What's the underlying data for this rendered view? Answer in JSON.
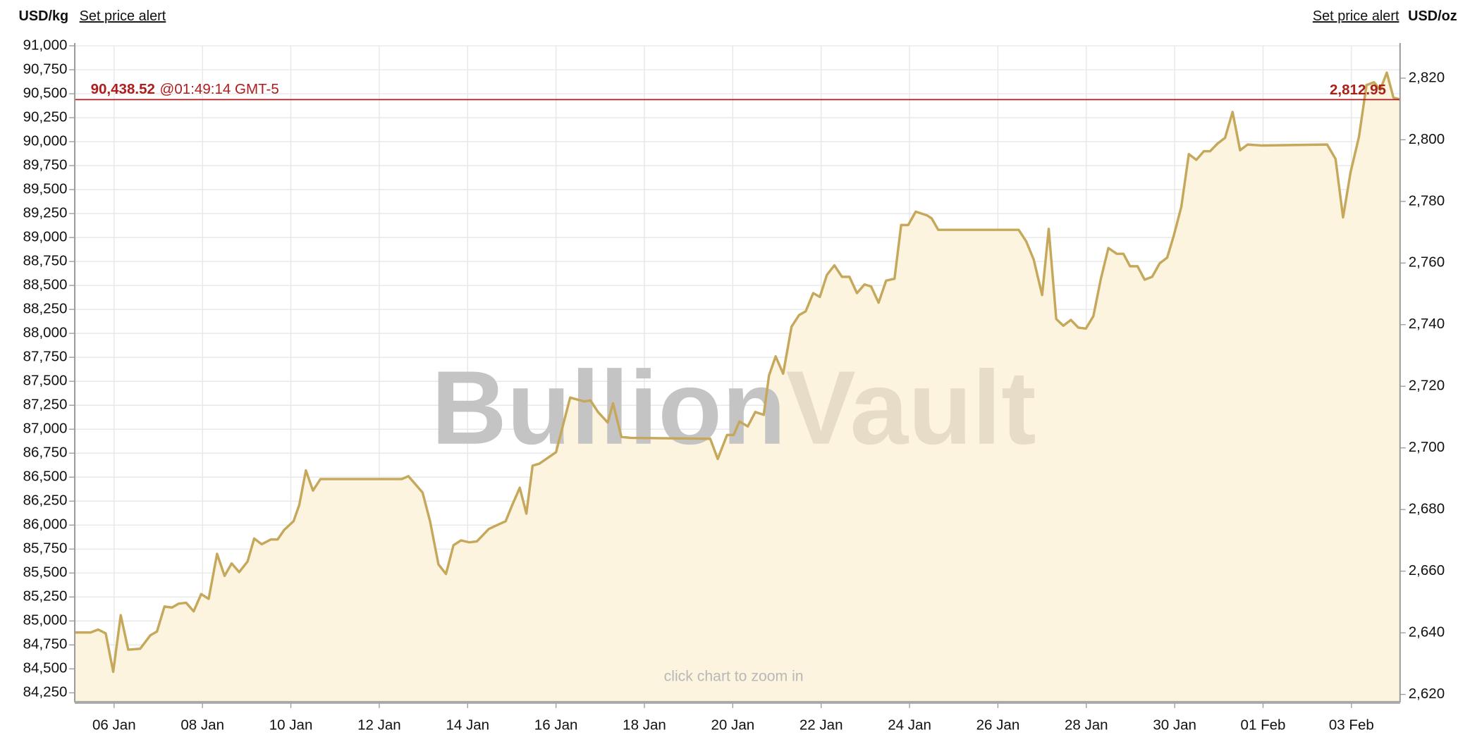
{
  "header": {
    "left_unit": "USD/kg",
    "left_alert": "Set price alert",
    "right_alert": "Set price alert",
    "right_unit": "USD/oz"
  },
  "chart_data": {
    "type": "area",
    "watermark": {
      "first": "Bullion",
      "second": "Vault"
    },
    "hint": "click chart to zoom in",
    "grid": true,
    "xlim": [
      5.11,
      35.1
    ],
    "xticks": [
      {
        "value": 6,
        "label": "06 Jan"
      },
      {
        "value": 8,
        "label": "08 Jan"
      },
      {
        "value": 10,
        "label": "10 Jan"
      },
      {
        "value": 12,
        "label": "12 Jan"
      },
      {
        "value": 14,
        "label": "14 Jan"
      },
      {
        "value": 16,
        "label": "16 Jan"
      },
      {
        "value": 18,
        "label": "18 Jan"
      },
      {
        "value": 20,
        "label": "20 Jan"
      },
      {
        "value": 22,
        "label": "22 Jan"
      },
      {
        "value": 24,
        "label": "24 Jan"
      },
      {
        "value": 26,
        "label": "26 Jan"
      },
      {
        "value": 28,
        "label": "28 Jan"
      },
      {
        "value": 30,
        "label": "30 Jan"
      },
      {
        "value": 32,
        "label": "01 Feb"
      },
      {
        "value": 34,
        "label": "03 Feb"
      }
    ],
    "ylim": [
      84150,
      91000
    ],
    "yticks": [
      {
        "value": 84250,
        "label": "84,250"
      },
      {
        "value": 84500,
        "label": "84,500"
      },
      {
        "value": 84750,
        "label": "84,750"
      },
      {
        "value": 85000,
        "label": "85,000"
      },
      {
        "value": 85250,
        "label": "85,250"
      },
      {
        "value": 85500,
        "label": "85,500"
      },
      {
        "value": 85750,
        "label": "85,750"
      },
      {
        "value": 86000,
        "label": "86,000"
      },
      {
        "value": 86250,
        "label": "86,250"
      },
      {
        "value": 86500,
        "label": "86,500"
      },
      {
        "value": 86750,
        "label": "86,750"
      },
      {
        "value": 87000,
        "label": "87,000"
      },
      {
        "value": 87250,
        "label": "87,250"
      },
      {
        "value": 87500,
        "label": "87,500"
      },
      {
        "value": 87750,
        "label": "87,750"
      },
      {
        "value": 88000,
        "label": "88,000"
      },
      {
        "value": 88250,
        "label": "88,250"
      },
      {
        "value": 88500,
        "label": "88,500"
      },
      {
        "value": 88750,
        "label": "88,750"
      },
      {
        "value": 89000,
        "label": "89,000"
      },
      {
        "value": 89250,
        "label": "89,250"
      },
      {
        "value": 89500,
        "label": "89,500"
      },
      {
        "value": 89750,
        "label": "89,750"
      },
      {
        "value": 90000,
        "label": "90,000"
      },
      {
        "value": 90250,
        "label": "90,250"
      },
      {
        "value": 90500,
        "label": "90,500"
      },
      {
        "value": 90750,
        "label": "90,750"
      },
      {
        "value": 91000,
        "label": "91,000"
      }
    ],
    "y2lim": [
      2617.4,
      2830.5
    ],
    "y2ticks": [
      {
        "value": 2620,
        "label": "2,620"
      },
      {
        "value": 2640,
        "label": "2,640"
      },
      {
        "value": 2660,
        "label": "2,660"
      },
      {
        "value": 2680,
        "label": "2,680"
      },
      {
        "value": 2700,
        "label": "2,700"
      },
      {
        "value": 2720,
        "label": "2,720"
      },
      {
        "value": 2740,
        "label": "2,740"
      },
      {
        "value": 2760,
        "label": "2,760"
      },
      {
        "value": 2780,
        "label": "2,780"
      },
      {
        "value": 2800,
        "label": "2,800"
      },
      {
        "value": 2820,
        "label": "2,820"
      }
    ],
    "price_line": {
      "value": 90438.52,
      "label": "90,438.52",
      "time": "@01:49:14 GMT-5",
      "y2_value": 2812.95,
      "y2_label": "2,812.95",
      "color": "#b01c1c"
    },
    "series": [
      {
        "color": "#c6a85c",
        "fill": "#fcf4df",
        "x": [
          5.11,
          5.47,
          5.64,
          5.81,
          5.98,
          6.15,
          6.32,
          6.59,
          6.82,
          6.97,
          7.14,
          7.31,
          7.46,
          7.63,
          7.8,
          7.97,
          8.14,
          8.33,
          8.5,
          8.66,
          8.83,
          9.02,
          9.17,
          9.34,
          9.55,
          9.7,
          9.85,
          10.06,
          10.19,
          10.34,
          10.5,
          10.67,
          12.51,
          12.66,
          12.98,
          13.15,
          13.34,
          13.51,
          13.68,
          13.85,
          14.04,
          14.21,
          14.48,
          14.67,
          14.86,
          15.01,
          15.18,
          15.33,
          15.47,
          15.62,
          16.0,
          16.32,
          16.64,
          16.78,
          16.95,
          17.17,
          17.29,
          17.48,
          17.69,
          19.49,
          19.66,
          19.87,
          20.02,
          20.15,
          20.34,
          20.51,
          20.7,
          20.82,
          20.97,
          21.14,
          21.33,
          21.5,
          21.65,
          21.82,
          21.97,
          22.13,
          22.3,
          22.47,
          22.64,
          22.81,
          22.98,
          23.13,
          23.3,
          23.47,
          23.66,
          23.81,
          23.97,
          24.14,
          24.4,
          24.5,
          24.65,
          26.47,
          26.64,
          26.81,
          27.0,
          27.15,
          27.32,
          27.48,
          27.65,
          27.82,
          27.99,
          28.16,
          28.33,
          28.5,
          28.69,
          28.84,
          28.99,
          29.16,
          29.32,
          29.49,
          29.66,
          29.83,
          29.98,
          30.15,
          30.32,
          30.49,
          30.66,
          30.8,
          30.97,
          31.14,
          31.31,
          31.48,
          31.65,
          31.97,
          33.45,
          33.64,
          33.81,
          33.98,
          34.17,
          34.34,
          34.51,
          34.65,
          34.8,
          34.95,
          35.1
        ],
        "values": [
          84880,
          84880,
          84910,
          84870,
          84470,
          85060,
          84700,
          84710,
          84850,
          84890,
          85150,
          85140,
          85180,
          85190,
          85100,
          85280,
          85230,
          85700,
          85470,
          85600,
          85510,
          85620,
          85860,
          85800,
          85850,
          85850,
          85950,
          86040,
          86210,
          86570,
          86360,
          86480,
          86480,
          86510,
          86340,
          86040,
          85590,
          85490,
          85790,
          85840,
          85820,
          85830,
          85960,
          86000,
          86040,
          86210,
          86390,
          86120,
          86620,
          86640,
          86760,
          87330,
          87290,
          87300,
          87180,
          87070,
          87270,
          86920,
          86910,
          86900,
          86690,
          86940,
          86940,
          87080,
          87030,
          87180,
          87150,
          87560,
          87760,
          87580,
          88070,
          88190,
          88230,
          88420,
          88380,
          88610,
          88710,
          88590,
          88590,
          88420,
          88510,
          88490,
          88320,
          88550,
          88570,
          89130,
          89130,
          89270,
          89230,
          89200,
          89080,
          89080,
          88960,
          88770,
          88400,
          89090,
          88150,
          88080,
          88140,
          88060,
          88050,
          88180,
          88570,
          88890,
          88830,
          88830,
          88700,
          88700,
          88560,
          88590,
          88730,
          88790,
          89020,
          89320,
          89870,
          89810,
          89900,
          89900,
          89980,
          90040,
          90310,
          89910,
          89970,
          89960,
          89970,
          89820,
          89210,
          89680,
          90050,
          90590,
          90620,
          90540,
          90720,
          90460,
          90440
        ]
      }
    ]
  }
}
